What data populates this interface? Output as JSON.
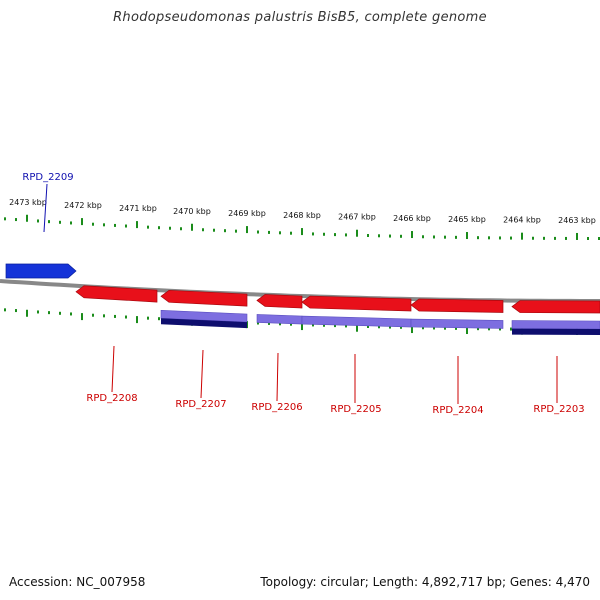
{
  "title": "Rhodopseudomonas palustris BisB5, complete genome",
  "footer": {
    "accession": "Accession: NC_007958",
    "summary": "Topology: circular; Length: 4,892,717 bp; Genes: 4,470"
  },
  "colors": {
    "plus_gene": "#1533d8",
    "minus_gene": "#e8101a",
    "cds_light": "#7d6ee0",
    "cds_dark": "#0e0e6e",
    "backbone": "#888888",
    "tick": "#1a8c1a",
    "plus_label": "#1010b0",
    "minus_label": "#cc0000"
  },
  "ruler": {
    "labels": [
      "2473 kbp",
      "2472 kbp",
      "2471 kbp",
      "2470 kbp",
      "2469 kbp",
      "2468 kbp",
      "2467 kbp",
      "2466 kbp",
      "2465 kbp",
      "2464 kbp",
      "2463 kbp"
    ]
  },
  "genes": [
    {
      "name": "RPD_2209",
      "strand": "plus"
    },
    {
      "name": "RPD_2208",
      "strand": "minus"
    },
    {
      "name": "RPD_2207",
      "strand": "minus"
    },
    {
      "name": "RPD_2206",
      "strand": "minus"
    },
    {
      "name": "RPD_2205",
      "strand": "minus"
    },
    {
      "name": "RPD_2204",
      "strand": "minus"
    },
    {
      "name": "RPD_2203",
      "strand": "minus"
    }
  ]
}
